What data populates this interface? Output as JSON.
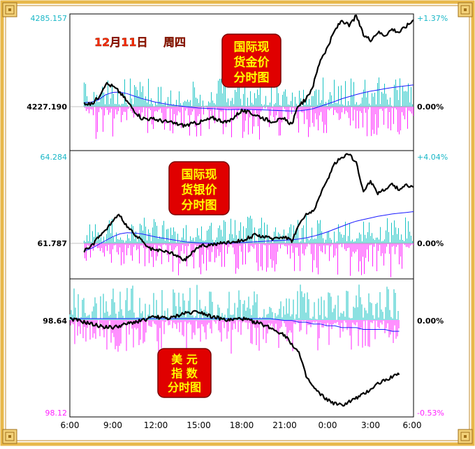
{
  "colors": {
    "frame_gold": "#E8B84A",
    "frame_inner": "#8B5A10",
    "price_line": "#000000",
    "ma_line": "#1a1aff",
    "bar_up": "#19C3C3",
    "bar_down": "#FF22FF",
    "cyan_label": "#19B7C7",
    "magenta_label": "#FF22FF",
    "badge_red": "#E00000",
    "badge_text": "#FFFF00",
    "date_text": "#FF2A00"
  },
  "header": {
    "date_label": "12月11日",
    "weekday_label": "周四"
  },
  "chart_data": [
    {
      "type": "line",
      "panel": "gold",
      "badge": [
        "国际现",
        "货金价",
        "分时图"
      ],
      "y_top_label": "4285.157",
      "y_base_label": "4227.190",
      "pct_top_label": "+1.37%",
      "pct_base_label": "0.00%",
      "ylim": [
        4200.0,
        4285.157
      ],
      "baseline": 4227.19,
      "x": [
        7.0,
        7.5,
        8.0,
        8.5,
        9.0,
        9.5,
        10.0,
        10.5,
        11.0,
        12.0,
        13.0,
        14.0,
        15.0,
        16.0,
        17.0,
        18.0,
        19.0,
        20.0,
        21.0,
        21.5,
        22.0,
        22.5,
        23.0,
        23.5,
        24.0,
        24.5,
        25.0,
        25.5,
        26.0,
        26.5,
        27.0,
        27.5,
        28.0,
        28.5,
        29.0,
        29.5,
        30.0
      ],
      "price": [
        4227.2,
        4226.0,
        4231.0,
        4240.0,
        4238.0,
        4234.0,
        4228.0,
        4222.0,
        4217.0,
        4216.0,
        4214.0,
        4212.0,
        4214.0,
        4217.0,
        4214.0,
        4222.0,
        4219.0,
        4215.0,
        4216.0,
        4213.0,
        4226.0,
        4229.0,
        4239.0,
        4256.0,
        4264.0,
        4275.0,
        4282.0,
        4278.0,
        4285.0,
        4272.0,
        4269.0,
        4274.0,
        4272.0,
        4276.0,
        4274.0,
        4278.0,
        4282.0
      ],
      "ma": [
        4227.2,
        4227.6,
        4229.0,
        4232.5,
        4234.0,
        4234.2,
        4233.2,
        4231.5,
        4230.0,
        4227.5,
        4225.8,
        4224.6,
        4223.6,
        4223.2,
        4222.6,
        4222.8,
        4222.6,
        4222.2,
        4221.8,
        4221.6,
        4221.8,
        4222.3,
        4223.2,
        4224.8,
        4226.4,
        4228.0,
        4229.8,
        4231.2,
        4232.6,
        4233.8,
        4234.8,
        4235.6,
        4236.4,
        4237.2,
        4237.8,
        4238.4,
        4239.0
      ]
    },
    {
      "type": "line",
      "panel": "silver",
      "badge": [
        "国际现",
        "货银价",
        "分时图"
      ],
      "y_top_label": "64.284",
      "y_base_label": "61.787",
      "pct_top_label": "+4.04%",
      "pct_base_label": "0.00%",
      "ylim": [
        61.4,
        64.284
      ],
      "baseline": 61.787,
      "x": [
        7.0,
        7.5,
        8.0,
        8.5,
        9.0,
        9.5,
        10.0,
        10.5,
        11.0,
        11.5,
        12.0,
        13.0,
        14.0,
        15.0,
        16.0,
        17.0,
        18.0,
        19.0,
        20.0,
        21.0,
        21.5,
        22.0,
        22.5,
        23.0,
        23.5,
        24.0,
        24.5,
        25.0,
        25.5,
        26.0,
        26.5,
        27.0,
        27.5,
        28.0,
        28.5,
        29.0,
        29.5,
        30.0
      ],
      "price": [
        61.79,
        61.9,
        62.15,
        62.3,
        62.55,
        62.7,
        62.4,
        62.2,
        62.05,
        61.85,
        61.8,
        61.75,
        61.55,
        61.9,
        61.95,
        62.0,
        62.05,
        62.2,
        62.1,
        62.15,
        62.05,
        62.45,
        62.7,
        62.8,
        63.2,
        63.6,
        64.0,
        64.15,
        64.25,
        64.0,
        63.3,
        63.55,
        63.25,
        63.35,
        63.45,
        63.35,
        63.45,
        63.4
      ],
      "ma": [
        61.79,
        61.85,
        61.95,
        62.05,
        62.15,
        62.22,
        62.25,
        62.24,
        62.22,
        62.18,
        62.14,
        62.08,
        62.02,
        61.99,
        61.98,
        61.98,
        62.0,
        62.02,
        62.04,
        62.06,
        62.07,
        62.09,
        62.12,
        62.16,
        62.21,
        62.27,
        62.34,
        62.41,
        62.48,
        62.54,
        62.58,
        62.62,
        62.66,
        62.69,
        62.72,
        62.74,
        62.76,
        62.78
      ]
    },
    {
      "type": "line",
      "panel": "usd_index",
      "badge": [
        "美 元",
        "指 数",
        "分时图"
      ],
      "y_base_label": "98.64",
      "y_bottom_label": "98.12",
      "pct_base_label": "0.00%",
      "pct_bottom_label": "-0.53%",
      "ylim": [
        98.12,
        98.79
      ],
      "baseline": 98.64,
      "x": [
        6.0,
        7.0,
        8.0,
        9.0,
        10.0,
        11.0,
        12.0,
        13.0,
        14.0,
        15.0,
        16.0,
        17.0,
        18.0,
        19.0,
        20.0,
        21.0,
        21.5,
        22.0,
        22.5,
        23.0,
        23.5,
        24.0,
        24.5,
        25.0,
        25.5,
        26.0,
        26.5,
        27.0,
        27.5,
        28.0,
        28.5,
        29.0
      ],
      "price": [
        98.64,
        98.62,
        98.6,
        98.59,
        98.61,
        98.63,
        98.65,
        98.64,
        98.67,
        98.68,
        98.65,
        98.63,
        98.64,
        98.62,
        98.59,
        98.55,
        98.5,
        98.45,
        98.32,
        98.26,
        98.22,
        98.19,
        98.17,
        98.16,
        98.18,
        98.2,
        98.22,
        98.25,
        98.28,
        98.3,
        98.32,
        98.33
      ],
      "ma": [
        98.64,
        98.64,
        98.64,
        98.64,
        98.64,
        98.64,
        98.64,
        98.64,
        98.64,
        98.64,
        98.64,
        98.64,
        98.64,
        98.64,
        98.64,
        98.63,
        98.63,
        98.62,
        98.62,
        98.61,
        98.61,
        98.6,
        98.6,
        98.59,
        98.59,
        98.59,
        98.58,
        98.58,
        98.58,
        98.58,
        98.57,
        98.57
      ]
    }
  ],
  "x_axis": {
    "tick_labels": [
      "6:00",
      "9:00",
      "12:00",
      "15:00",
      "18:00",
      "21:00",
      "0:00",
      "3:00",
      "6:00"
    ],
    "xlim": [
      6.0,
      30.0
    ]
  }
}
